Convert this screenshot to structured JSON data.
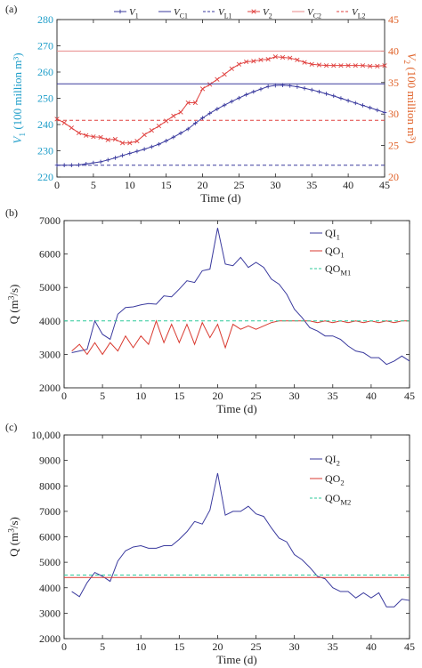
{
  "chart_data": [
    {
      "type": "line",
      "panel_label": "(a)",
      "xlabel": "Time (d)",
      "xlim": [
        0,
        45
      ],
      "xticks": [
        0,
        5,
        10,
        15,
        20,
        25,
        30,
        35,
        40,
        45
      ],
      "ylabel_left": {
        "main": "V",
        "sub": "1",
        "rest": " (100 million m³)"
      },
      "ylabel_right": {
        "main": "V",
        "sub": "2",
        "rest": " (100 million m³)"
      },
      "ylim_left": [
        220,
        280
      ],
      "yticks_left": [
        220,
        230,
        240,
        250,
        260,
        270,
        280
      ],
      "ylim_right": [
        20,
        45
      ],
      "yticks_right": [
        20,
        25,
        30,
        35,
        40,
        45
      ],
      "left_axis_color": "#1f9ec9",
      "right_axis_color": "#e0632a",
      "legend": [
        {
          "main": "V",
          "sub": "1",
          "color": "#3a3a9e",
          "style": "marker-line"
        },
        {
          "main": "V",
          "sub": "C1",
          "color": "#3a3a9e",
          "style": "solid"
        },
        {
          "main": "V",
          "sub": "L1",
          "color": "#3a3a9e",
          "style": "dashed"
        },
        {
          "main": "V",
          "sub": "2",
          "color": "#e0413f",
          "style": "marker-line"
        },
        {
          "main": "V",
          "sub": "C2",
          "color": "#e88a88",
          "style": "solid"
        },
        {
          "main": "V",
          "sub": "L2",
          "color": "#e0413f",
          "style": "dashed"
        }
      ],
      "series": [
        {
          "name": "V1",
          "axis": "left",
          "color": "#3a3a9e",
          "marker": "plus",
          "x": [
            0,
            1,
            2,
            3,
            4,
            5,
            6,
            7,
            8,
            9,
            10,
            11,
            12,
            13,
            14,
            15,
            16,
            17,
            18,
            19,
            20,
            21,
            22,
            23,
            24,
            25,
            26,
            27,
            28,
            29,
            30,
            31,
            32,
            33,
            34,
            35,
            36,
            37,
            38,
            39,
            40,
            41,
            42,
            43,
            44,
            45
          ],
          "y": [
            224.5,
            224.5,
            224.5,
            224.6,
            225.0,
            225.4,
            225.8,
            226.5,
            227.3,
            228.2,
            229.0,
            229.8,
            230.6,
            231.5,
            232.5,
            233.8,
            235.2,
            236.7,
            238.3,
            240.5,
            242.5,
            244.3,
            245.9,
            247.4,
            248.8,
            250.1,
            251.4,
            252.5,
            253.5,
            254.5,
            254.9,
            255.0,
            254.8,
            254.4,
            253.8,
            253.2,
            252.5,
            251.7,
            250.9,
            250.0,
            249.1,
            248.2,
            247.3,
            246.4,
            245.5,
            244.6
          ]
        },
        {
          "name": "V2",
          "axis": "right",
          "color": "#e0413f",
          "marker": "x",
          "x": [
            0,
            1,
            2,
            3,
            4,
            5,
            6,
            7,
            8,
            9,
            10,
            11,
            12,
            13,
            14,
            15,
            16,
            17,
            18,
            19,
            20,
            21,
            22,
            23,
            24,
            25,
            26,
            27,
            28,
            29,
            30,
            31,
            32,
            33,
            34,
            35,
            36,
            37,
            38,
            39,
            40,
            41,
            42,
            43,
            44,
            45
          ],
          "y": [
            29.2,
            28.6,
            27.8,
            27.0,
            26.6,
            26.4,
            26.3,
            25.9,
            26.0,
            25.4,
            25.4,
            25.7,
            26.7,
            27.4,
            28.1,
            28.9,
            29.7,
            30.3,
            31.8,
            31.8,
            34.0,
            34.7,
            35.5,
            36.3,
            37.2,
            37.9,
            38.3,
            38.4,
            38.6,
            38.7,
            39.1,
            39.0,
            38.9,
            38.6,
            38.2,
            37.9,
            37.8,
            37.7,
            37.7,
            37.7,
            37.7,
            37.7,
            37.7,
            37.6,
            37.6,
            37.7
          ]
        },
        {
          "name": "VC1",
          "axis": "left",
          "color": "#3a3a9e",
          "style": "solid",
          "x": [
            0,
            45
          ],
          "y": [
            255.5,
            255.5
          ]
        },
        {
          "name": "VL1",
          "axis": "left",
          "color": "#3a3a9e",
          "style": "dashed",
          "x": [
            0,
            45
          ],
          "y": [
            224.5,
            224.5
          ]
        },
        {
          "name": "VC2",
          "axis": "right",
          "color": "#e88a88",
          "style": "solid",
          "x": [
            0,
            45
          ],
          "y": [
            40,
            40
          ]
        },
        {
          "name": "VL2",
          "axis": "right",
          "color": "#e0413f",
          "style": "dashed",
          "x": [
            0,
            45
          ],
          "y": [
            29,
            29
          ]
        }
      ]
    },
    {
      "type": "line",
      "panel_label": "(b)",
      "xlabel": "Time (d)",
      "xlim": [
        0,
        45
      ],
      "xticks": [
        0,
        5,
        10,
        15,
        20,
        25,
        30,
        35,
        40,
        45
      ],
      "ylabel": {
        "main": "Q (m",
        "sup": "3",
        "rest": "/s)"
      },
      "ylim": [
        2000,
        7000
      ],
      "yticks": [
        2000,
        3000,
        4000,
        5000,
        6000,
        7000
      ],
      "legend": [
        {
          "main": "QI",
          "sub": "1",
          "color": "#3a3a9e",
          "style": "solid"
        },
        {
          "main": "QO",
          "sub": "1",
          "color": "#d93a30",
          "style": "solid"
        },
        {
          "main": "QO",
          "sub": "M1",
          "color": "#2fc99a",
          "style": "dashed"
        }
      ],
      "series": [
        {
          "name": "QI1",
          "color": "#3a3a9e",
          "style": "solid",
          "x": [
            1,
            2,
            3,
            4,
            5,
            6,
            7,
            8,
            9,
            10,
            11,
            12,
            13,
            14,
            15,
            16,
            17,
            18,
            19,
            20,
            21,
            22,
            23,
            24,
            25,
            26,
            27,
            28,
            29,
            30,
            31,
            32,
            33,
            34,
            35,
            36,
            37,
            38,
            39,
            40,
            41,
            42,
            43,
            44,
            45
          ],
          "y": [
            3050,
            3100,
            3150,
            4000,
            3600,
            3450,
            4200,
            4400,
            4420,
            4480,
            4520,
            4500,
            4750,
            4720,
            4950,
            5200,
            5150,
            5500,
            5550,
            6780,
            5700,
            5650,
            5900,
            5600,
            5750,
            5600,
            5250,
            5100,
            4800,
            4350,
            4100,
            3800,
            3700,
            3550,
            3550,
            3450,
            3250,
            3100,
            3050,
            2900,
            2900,
            2700,
            2800,
            2950,
            2800
          ]
        },
        {
          "name": "QO1",
          "color": "#d93a30",
          "style": "solid",
          "x": [
            1,
            2,
            3,
            4,
            5,
            6,
            7,
            8,
            9,
            10,
            11,
            12,
            13,
            14,
            15,
            16,
            17,
            18,
            19,
            20,
            21,
            22,
            23,
            24,
            25,
            26,
            27,
            28,
            29,
            30,
            31,
            32,
            33,
            34,
            35,
            36,
            37,
            38,
            39,
            40,
            41,
            42,
            43,
            44,
            45
          ],
          "y": [
            3100,
            3300,
            3000,
            3350,
            3000,
            3350,
            3100,
            3550,
            3200,
            3550,
            3300,
            4000,
            3350,
            3900,
            3350,
            3900,
            3300,
            3950,
            3500,
            3900,
            3200,
            3900,
            3750,
            3850,
            3750,
            3850,
            3950,
            4000,
            4000,
            4000,
            4000,
            4000,
            3950,
            4000,
            3950,
            4000,
            3950,
            4000,
            3950,
            4000,
            3950,
            4000,
            3950,
            4000,
            4000
          ]
        },
        {
          "name": "QOM1",
          "color": "#2fc99a",
          "style": "dashed",
          "x": [
            0,
            45
          ],
          "y": [
            4000,
            4000
          ]
        }
      ]
    },
    {
      "type": "line",
      "panel_label": "(c)",
      "xlabel": "Time (d)",
      "xlim": [
        0,
        45
      ],
      "xticks": [
        0,
        5,
        10,
        15,
        20,
        25,
        30,
        35,
        40,
        45
      ],
      "ylabel": {
        "main": "Q (m",
        "sup": "3",
        "rest": "/s)"
      },
      "ylim": [
        2000,
        10000
      ],
      "yticks": [
        2000,
        3000,
        4000,
        5000,
        6000,
        7000,
        8000,
        9000,
        10000
      ],
      "ytick_labels": [
        "2000",
        "3000",
        "4000",
        "5000",
        "6000",
        "7000",
        "8000",
        "9000",
        "10,000"
      ],
      "legend": [
        {
          "main": "QI",
          "sub": "2",
          "color": "#3a3a9e",
          "style": "solid"
        },
        {
          "main": "QO",
          "sub": "2",
          "color": "#d93a30",
          "style": "solid"
        },
        {
          "main": "QO",
          "sub": "M2",
          "color": "#2fc99a",
          "style": "dashed"
        }
      ],
      "series": [
        {
          "name": "QI2",
          "color": "#3a3a9e",
          "style": "solid",
          "x": [
            1,
            2,
            3,
            4,
            5,
            6,
            7,
            8,
            9,
            10,
            11,
            12,
            13,
            14,
            15,
            16,
            17,
            18,
            19,
            20,
            21,
            22,
            23,
            24,
            25,
            26,
            27,
            28,
            29,
            30,
            31,
            32,
            33,
            34,
            35,
            36,
            37,
            38,
            39,
            40,
            41,
            42,
            43,
            44,
            45
          ],
          "y": [
            3850,
            3650,
            4200,
            4600,
            4450,
            4250,
            5050,
            5450,
            5600,
            5650,
            5550,
            5550,
            5650,
            5650,
            5900,
            6200,
            6600,
            6500,
            7050,
            8500,
            6850,
            7000,
            7000,
            7200,
            6900,
            6800,
            6350,
            5950,
            5800,
            5300,
            5100,
            4800,
            4450,
            4350,
            4000,
            3850,
            3850,
            3600,
            3800,
            3600,
            3800,
            3250,
            3250,
            3550,
            3500
          ]
        },
        {
          "name": "QO2",
          "color": "#d93a30",
          "style": "solid",
          "x": [
            0,
            45
          ],
          "y": [
            4400,
            4400
          ]
        },
        {
          "name": "QOM2",
          "color": "#2fc99a",
          "style": "dashed",
          "x": [
            0,
            45
          ],
          "y": [
            4500,
            4500
          ]
        }
      ]
    }
  ]
}
